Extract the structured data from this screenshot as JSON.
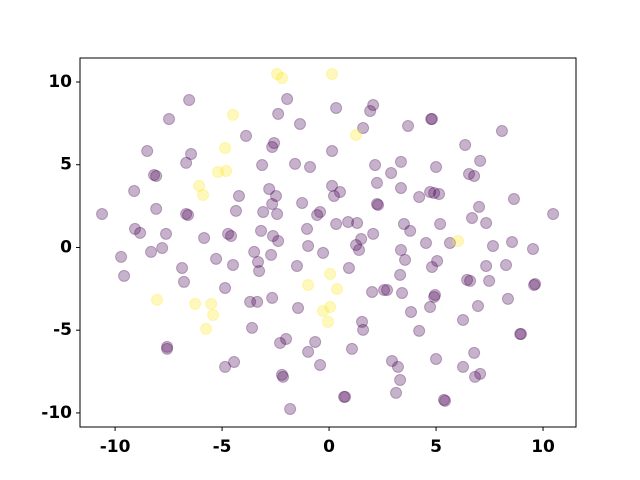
{
  "chart_data": {
    "type": "scatter",
    "xlim": [
      -11.64,
      11.54
    ],
    "ylim": [
      -10.85,
      11.45
    ],
    "xticks": [
      -10,
      -5,
      0,
      5,
      10
    ],
    "yticks": [
      -10,
      -5,
      0,
      5,
      10
    ],
    "grid": false,
    "opacity": 0.3,
    "series": [
      {
        "color": "#440154",
        "x": [
          -10.61,
          -9.72,
          -9.58,
          -9.11,
          -9.07,
          -8.83,
          -8.5,
          -8.18,
          -8.08,
          -8.08,
          -8.32,
          -7.8,
          -7.62,
          -7.48,
          -7.57,
          -7.57,
          -6.87,
          -6.78,
          -6.68,
          -6.59,
          -6.68,
          -6.45,
          -6.54,
          -5.84,
          -5.28,
          -4.86,
          -4.72,
          -4.58,
          -4.49,
          -4.35,
          -4.21,
          -4.44,
          -4.86,
          -3.88,
          -3.69,
          -3.6,
          -3.5,
          -3.36,
          -3.32,
          -3.27,
          -3.18,
          -3.13,
          -3.08,
          -2.8,
          -2.66,
          -2.66,
          -2.62,
          -2.66,
          -2.71,
          -2.57,
          -2.48,
          -2.43,
          -2.38,
          -2.38,
          -2.29,
          -2.2,
          -2.15,
          -1.96,
          -2.01,
          -1.82,
          -1.59,
          -1.5,
          -1.45,
          -1.36,
          -1.26,
          -1.03,
          -0.98,
          -0.89,
          -0.98,
          -0.65,
          -0.56,
          -0.42,
          -0.42,
          -0.28,
          0.14,
          0.14,
          0.23,
          0.33,
          0.33,
          0.51,
          0.7,
          0.75,
          0.89,
          0.93,
          1.07,
          1.26,
          1.31,
          1.4,
          1.5,
          1.54,
          1.59,
          1.59,
          1.92,
          2.01,
          2.06,
          2.06,
          2.15,
          2.24,
          2.24,
          2.29,
          2.57,
          2.71,
          2.9,
          2.94,
          3.13,
          3.22,
          3.32,
          3.36,
          3.36,
          3.36,
          3.32,
          3.41,
          3.55,
          3.5,
          3.69,
          3.79,
          3.83,
          4.21,
          4.21,
          4.53,
          4.72,
          4.77,
          4.81,
          4.72,
          4.81,
          4.91,
          4.91,
          5.0,
          4.95,
          5.0,
          5.14,
          5.05,
          5.19,
          5.37,
          5.42,
          5.65,
          6.26,
          6.36,
          6.26,
          6.54,
          6.45,
          6.59,
          6.78,
          6.68,
          6.82,
          6.78,
          6.96,
          7.01,
          7.06,
          7.06,
          7.34,
          7.34,
          7.48,
          7.66,
          8.08,
          8.27,
          8.36,
          8.55,
          8.64,
          8.93,
          8.97,
          9.53,
          9.58,
          9.63,
          10.47
        ],
        "values": [
          2.02,
          -0.57,
          -1.72,
          3.41,
          1.12,
          0.88,
          5.83,
          4.38,
          4.32,
          2.33,
          -0.27,
          -0.03,
          0.82,
          7.76,
          -6.01,
          -6.13,
          -1.24,
          -2.08,
          2.02,
          1.96,
          5.11,
          5.65,
          8.91,
          0.57,
          -0.69,
          -2.45,
          0.82,
          0.69,
          -1.06,
          2.21,
          3.11,
          -6.92,
          -7.22,
          6.74,
          -3.29,
          -4.86,
          -0.27,
          -3.29,
          -0.88,
          -1.42,
          1.0,
          4.98,
          2.14,
          3.53,
          6.07,
          2.63,
          0.69,
          -3.05,
          -0.45,
          6.31,
          3.11,
          2.02,
          0.39,
          8.07,
          -5.77,
          -7.7,
          -7.82,
          8.97,
          -5.53,
          -9.76,
          5.05,
          -1.12,
          -3.66,
          7.46,
          2.69,
          1.12,
          0.09,
          4.86,
          -6.31,
          -5.71,
          1.96,
          2.14,
          -7.1,
          -0.33,
          3.72,
          5.83,
          3.11,
          8.43,
          1.42,
          3.35,
          -9.03,
          -9.03,
          1.54,
          -1.24,
          -6.13,
          0.15,
          1.48,
          -0.15,
          0.51,
          -4.5,
          7.22,
          -4.98,
          8.25,
          -2.69,
          0.82,
          8.61,
          4.98,
          3.9,
          2.63,
          2.57,
          -2.57,
          -2.57,
          4.5,
          -6.86,
          -8.79,
          -7.22,
          -8.01,
          5.17,
          3.59,
          -0.15,
          -1.66,
          -2.75,
          -0.75,
          1.42,
          7.34,
          1.0,
          -3.9,
          3.05,
          -5.04,
          0.27,
          -3.6,
          7.76,
          7.76,
          3.35,
          -1.18,
          -2.99,
          3.29,
          -6.74,
          -2.87,
          4.86,
          3.23,
          -0.82,
          1.42,
          -9.21,
          -9.27,
          0.27,
          -4.38,
          6.19,
          -7.22,
          4.44,
          -1.96,
          -2.02,
          4.32,
          1.78,
          -7.82,
          -6.37,
          -3.54,
          2.45,
          5.23,
          -7.64,
          1.48,
          -1.12,
          -2.02,
          0.09,
          7.04,
          -1.06,
          -3.11,
          0.33,
          2.93,
          -5.23,
          -5.23,
          -0.09,
          -2.27,
          -2.21,
          2.02
        ]
      },
      {
        "color": "#fde725",
        "x": [
          -2.43,
          -2.2,
          0.14,
          -4.49,
          1.26,
          -4.86,
          -6.07,
          -5.89,
          -5.19,
          -4.81,
          6.03,
          0.05,
          -0.98,
          0.37,
          -8.04,
          -6.26,
          -5.51,
          -5.42,
          -5.75,
          -0.28,
          0.05,
          -0.05
        ],
        "values": [
          10.48,
          10.24,
          10.48,
          8.01,
          6.8,
          6.01,
          3.72,
          3.17,
          4.56,
          4.62,
          0.39,
          -1.6,
          -2.27,
          -2.51,
          -3.17,
          -3.41,
          -3.41,
          -4.08,
          -4.92,
          -3.84,
          -3.6,
          -4.5
        ]
      }
    ]
  }
}
